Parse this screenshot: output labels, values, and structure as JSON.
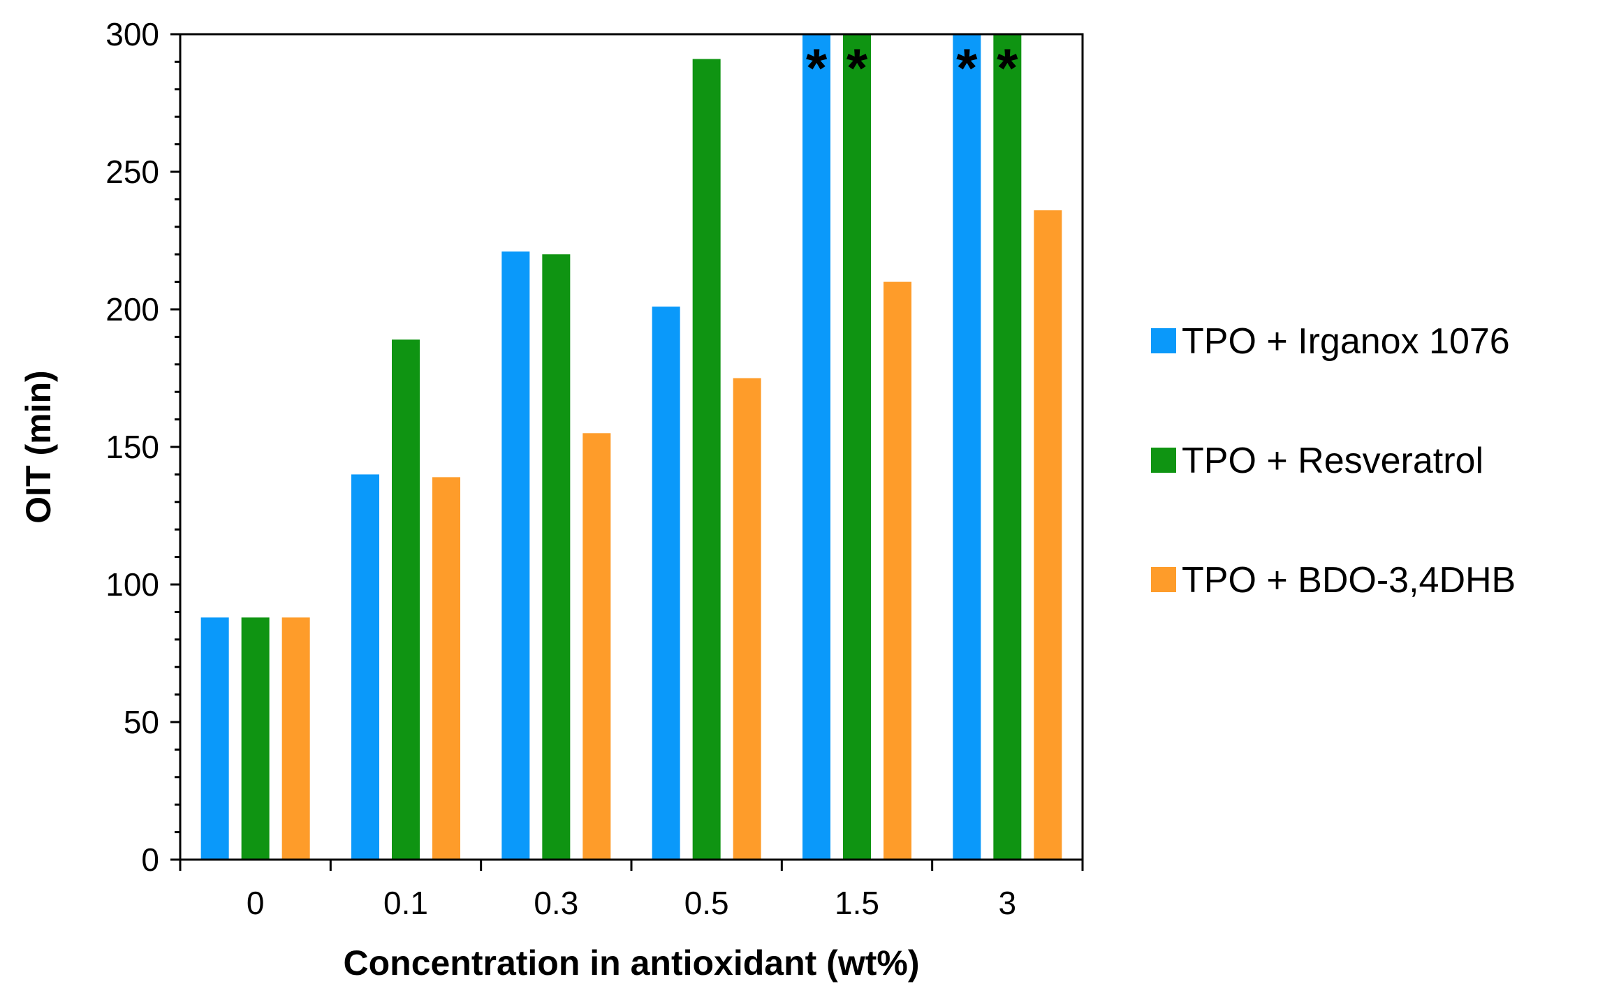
{
  "chart_data": {
    "type": "bar",
    "xlabel": "Concentration in antioxidant (wt%)",
    "ylabel": "OIT (min)",
    "categories": [
      "0",
      "0.1",
      "0.3",
      "0.5",
      "1.5",
      "3"
    ],
    "ylim": [
      0,
      300
    ],
    "yticks": [
      "0",
      "50",
      "100",
      "150",
      "200",
      "250",
      "300"
    ],
    "grid": false,
    "legend_position": "right",
    "series": [
      {
        "name": "TPO + Irganox 1076",
        "color": "#0a99fa",
        "values": [
          88,
          140,
          221,
          201,
          300,
          300
        ]
      },
      {
        "name": "TPO + Resveratrol",
        "color": "#0f9412",
        "values": [
          88,
          189,
          220,
          291,
          300,
          300
        ]
      },
      {
        "name": "TPO + BDO-3,4DHB",
        "color": "#fe9c2a",
        "values": [
          88,
          139,
          155,
          175,
          210,
          236
        ]
      }
    ],
    "annotations": [
      {
        "text": "*",
        "series": 0,
        "category": "1.5"
      },
      {
        "text": "*",
        "series": 1,
        "category": "1.5"
      },
      {
        "text": "*",
        "series": 0,
        "category": "3"
      },
      {
        "text": "*",
        "series": 1,
        "category": "3"
      }
    ]
  }
}
